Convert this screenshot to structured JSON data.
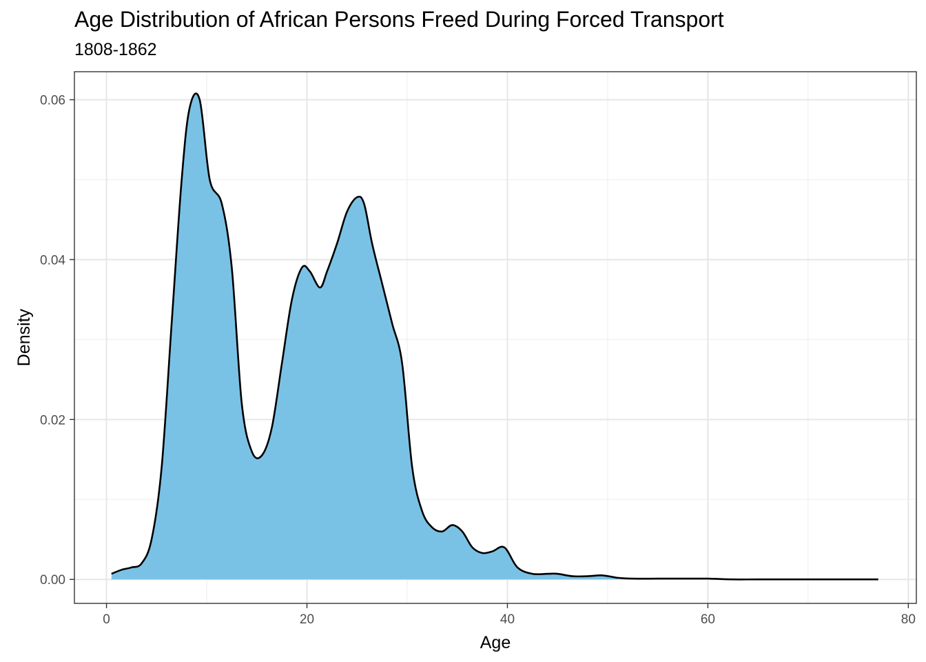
{
  "title": "Age Distribution of African Persons Freed During Forced Transport",
  "subtitle": "1808-1862",
  "colors": {
    "fill": "#7AC2E5",
    "line": "#000000",
    "grid_major": "#e6e6e6",
    "grid_minor": "#f0f0f0",
    "panel_border": "#333333",
    "tick_text": "#4d4d4d"
  },
  "chart_data": {
    "type": "area",
    "subtype": "density",
    "title": "Age Distribution of African Persons Freed During Forced Transport",
    "subtitle": "1808-1862",
    "xlabel": "Age",
    "ylabel": "Density",
    "xlim": [
      -3.2,
      80.8
    ],
    "ylim": [
      -0.003,
      0.0635
    ],
    "x_ticks": [
      0,
      20,
      40,
      60,
      80
    ],
    "x_tick_labels": [
      "0",
      "20",
      "40",
      "60",
      "80"
    ],
    "y_ticks": [
      0.0,
      0.02,
      0.04,
      0.06
    ],
    "y_tick_labels": [
      "0.00",
      "0.02",
      "0.04",
      "0.06"
    ],
    "grid": true,
    "legend": "none",
    "filled_up_to_x": 52,
    "series": [
      {
        "x": [
          0.5,
          1.5,
          2.5,
          3.5,
          4.5,
          5.5,
          6.5,
          7.5,
          8.3,
          9.3,
          10.3,
          11.5,
          12.5,
          13.5,
          14.5,
          15.5,
          16.5,
          17.5,
          18.5,
          19.5,
          20.3,
          21.3,
          22.0,
          23.0,
          24.0,
          25.0,
          25.7,
          26.5,
          27.5,
          28.5,
          29.5,
          30.5,
          31.5,
          32.5,
          33.5,
          34.5,
          35.5,
          36.5,
          37.5,
          38.5,
          39.7,
          41.0,
          42.5,
          44.0,
          45.0,
          46.5,
          48.0,
          49.5,
          51.0,
          52.5,
          55.0,
          57.5,
          60.0,
          62.5,
          65.0,
          70.0,
          75.0,
          77.0
        ],
        "y": [
          0.0007,
          0.0012,
          0.0015,
          0.002,
          0.005,
          0.014,
          0.032,
          0.05,
          0.059,
          0.06,
          0.05,
          0.047,
          0.039,
          0.022,
          0.016,
          0.0155,
          0.019,
          0.027,
          0.035,
          0.039,
          0.0385,
          0.0365,
          0.0385,
          0.042,
          0.046,
          0.0478,
          0.047,
          0.042,
          0.037,
          0.032,
          0.027,
          0.014,
          0.0085,
          0.0065,
          0.006,
          0.0068,
          0.006,
          0.004,
          0.0033,
          0.0035,
          0.004,
          0.0015,
          0.0007,
          0.0007,
          0.0007,
          0.0004,
          0.0004,
          0.0005,
          0.0002,
          0.0001,
          0.0001,
          0.0001,
          0.0001,
          0.0,
          0.0,
          0.0,
          0.0,
          0.0
        ]
      }
    ]
  }
}
